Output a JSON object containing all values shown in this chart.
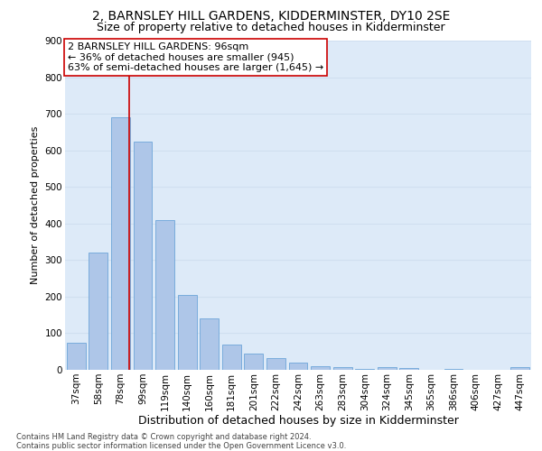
{
  "title": "2, BARNSLEY HILL GARDENS, KIDDERMINSTER, DY10 2SE",
  "subtitle": "Size of property relative to detached houses in Kidderminster",
  "xlabel": "Distribution of detached houses by size in Kidderminster",
  "ylabel": "Number of detached properties",
  "categories": [
    "37sqm",
    "58sqm",
    "78sqm",
    "99sqm",
    "119sqm",
    "140sqm",
    "160sqm",
    "181sqm",
    "201sqm",
    "222sqm",
    "242sqm",
    "263sqm",
    "283sqm",
    "304sqm",
    "324sqm",
    "345sqm",
    "365sqm",
    "386sqm",
    "406sqm",
    "427sqm",
    "447sqm"
  ],
  "values": [
    75,
    320,
    690,
    625,
    410,
    205,
    140,
    70,
    45,
    33,
    20,
    10,
    8,
    3,
    8,
    5,
    0,
    3,
    0,
    0,
    8
  ],
  "bar_color": "#aec6e8",
  "bar_edge_color": "#5b9bd5",
  "grid_color": "#d0dff0",
  "background_color": "#ddeaf8",
  "vline_color": "#cc0000",
  "vline_x": 2.4,
  "annotation_text": "2 BARNSLEY HILL GARDENS: 96sqm\n← 36% of detached houses are smaller (945)\n63% of semi-detached houses are larger (1,645) →",
  "annotation_box_color": "#ffffff",
  "annotation_box_edge_color": "#cc0000",
  "ylim": [
    0,
    900
  ],
  "yticks": [
    0,
    100,
    200,
    300,
    400,
    500,
    600,
    700,
    800,
    900
  ],
  "footnote": "Contains HM Land Registry data © Crown copyright and database right 2024.\nContains public sector information licensed under the Open Government Licence v3.0.",
  "title_fontsize": 10,
  "subtitle_fontsize": 9,
  "xlabel_fontsize": 9,
  "ylabel_fontsize": 8,
  "tick_fontsize": 7.5,
  "annotation_fontsize": 8
}
